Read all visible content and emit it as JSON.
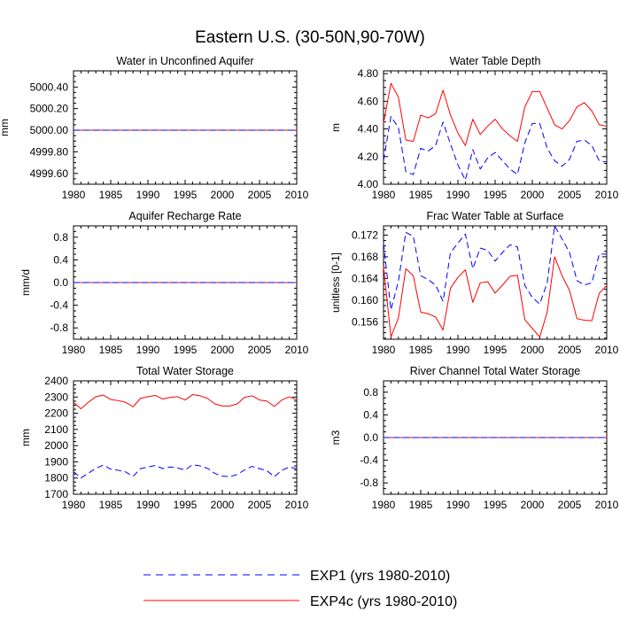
{
  "figure_title": "Eastern U.S. (30-50N,90-70W)",
  "legend": {
    "items": [
      {
        "label": "EXP1 (yrs 1980-2010)",
        "color": "#0000ff",
        "style": "dashed"
      },
      {
        "label": "EXP4c (yrs 1980-2010)",
        "color": "#ff0000",
        "style": "solid"
      }
    ]
  },
  "chart_data": [
    {
      "type": "line",
      "title": "Water in Unconfined Aquifer",
      "ylabel": "mm",
      "xlim": [
        1980,
        2010
      ],
      "ylim": [
        4999.5,
        5000.55
      ],
      "xticks": [
        1980,
        1985,
        1990,
        1995,
        2000,
        2005,
        2010
      ],
      "yticks": [
        4999.6,
        4999.8,
        5000.0,
        5000.2,
        5000.4
      ],
      "yticklabels": [
        "4999.60",
        "4999.80",
        "5000.00",
        "5000.20",
        "5000.40"
      ],
      "series": [
        {
          "name": "EXP1 (yrs 1980-2010)",
          "color": "#0000ff",
          "dash": true,
          "x": [
            1980,
            2010
          ],
          "values": [
            5000.0,
            5000.0
          ]
        },
        {
          "name": "EXP4c (yrs 1980-2010)",
          "color": "#ff0000",
          "dash": false,
          "x": [
            1980,
            2010
          ],
          "values": [
            5000.0,
            5000.0
          ]
        }
      ]
    },
    {
      "type": "line",
      "title": "Water Table Depth",
      "ylabel": "m",
      "xlim": [
        1980,
        2010
      ],
      "ylim": [
        4.0,
        4.82
      ],
      "xticks": [
        1980,
        1985,
        1990,
        1995,
        2000,
        2005,
        2010
      ],
      "yticks": [
        4.0,
        4.2,
        4.4,
        4.6,
        4.8
      ],
      "yticklabels": [
        "4.00",
        "4.20",
        "4.40",
        "4.60",
        "4.80"
      ],
      "series": [
        {
          "name": "EXP1 (yrs 1980-2010)",
          "color": "#0000ff",
          "dash": true,
          "x": [
            1980,
            1981,
            1982,
            1983,
            1984,
            1985,
            1986,
            1987,
            1988,
            1989,
            1990,
            1991,
            1992,
            1993,
            1994,
            1995,
            1996,
            1997,
            1998,
            1999,
            2000,
            2001,
            2002,
            2003,
            2004,
            2005,
            2006,
            2007,
            2008,
            2009,
            2010
          ],
          "values": [
            4.17,
            4.49,
            4.41,
            4.09,
            4.07,
            4.26,
            4.24,
            4.28,
            4.45,
            4.29,
            4.14,
            4.03,
            4.25,
            4.11,
            4.19,
            4.23,
            4.17,
            4.11,
            4.07,
            4.3,
            4.44,
            4.44,
            4.26,
            4.17,
            4.13,
            4.18,
            4.31,
            4.32,
            4.28,
            4.17,
            4.16
          ]
        },
        {
          "name": "EXP4c (yrs 1980-2010)",
          "color": "#ff0000",
          "dash": false,
          "x": [
            1980,
            1981,
            1982,
            1983,
            1984,
            1985,
            1986,
            1987,
            1988,
            1989,
            1990,
            1991,
            1992,
            1993,
            1994,
            1995,
            1996,
            1997,
            1998,
            1999,
            2000,
            2001,
            2002,
            2003,
            2004,
            2005,
            2006,
            2007,
            2008,
            2009,
            2010
          ],
          "values": [
            4.44,
            4.73,
            4.63,
            4.32,
            4.31,
            4.5,
            4.48,
            4.51,
            4.68,
            4.5,
            4.37,
            4.28,
            4.47,
            4.36,
            4.42,
            4.47,
            4.4,
            4.35,
            4.31,
            4.56,
            4.67,
            4.67,
            4.55,
            4.43,
            4.4,
            4.46,
            4.56,
            4.59,
            4.53,
            4.43,
            4.42
          ]
        }
      ]
    },
    {
      "type": "line",
      "title": "Aquifer Recharge Rate",
      "ylabel": "mm/d",
      "xlim": [
        1980,
        2010
      ],
      "ylim": [
        -1.0,
        1.0
      ],
      "xticks": [
        1980,
        1985,
        1990,
        1995,
        2000,
        2005,
        2010
      ],
      "yticks": [
        -0.8,
        -0.4,
        0.0,
        0.4,
        0.8
      ],
      "yticklabels": [
        "-0.8",
        "-0.4",
        "0.0",
        "0.4",
        "0.8"
      ],
      "series": [
        {
          "name": "EXP1 (yrs 1980-2010)",
          "color": "#0000ff",
          "dash": true,
          "x": [
            1980,
            2010
          ],
          "values": [
            0.0,
            0.0
          ]
        },
        {
          "name": "EXP4c (yrs 1980-2010)",
          "color": "#ff0000",
          "dash": false,
          "x": [
            1980,
            2010
          ],
          "values": [
            0.0,
            0.0
          ]
        }
      ]
    },
    {
      "type": "line",
      "title": "Frac Water Table at Surface",
      "ylabel": "unitless [0-1]",
      "xlim": [
        1980,
        2010
      ],
      "ylim": [
        0.1528,
        0.1737
      ],
      "xticks": [
        1980,
        1985,
        1990,
        1995,
        2000,
        2005,
        2010
      ],
      "yticks": [
        0.156,
        0.16,
        0.164,
        0.168,
        0.172
      ],
      "yticklabels": [
        "0.156",
        "0.160",
        "0.164",
        "0.168",
        "0.172"
      ],
      "series": [
        {
          "name": "EXP1 (yrs 1980-2010)",
          "color": "#0000ff",
          "dash": true,
          "x": [
            1980,
            1981,
            1982,
            1983,
            1984,
            1985,
            1986,
            1987,
            1988,
            1989,
            1990,
            1991,
            1992,
            1993,
            1994,
            1995,
            1996,
            1997,
            1998,
            1999,
            2000,
            2001,
            2002,
            2003,
            2004,
            2005,
            2006,
            2007,
            2008,
            2009,
            2010
          ],
          "values": [
            0.1705,
            0.1582,
            0.1635,
            0.1725,
            0.1718,
            0.1645,
            0.1638,
            0.1628,
            0.1598,
            0.1688,
            0.1705,
            0.1722,
            0.1658,
            0.1696,
            0.1692,
            0.1672,
            0.1688,
            0.1702,
            0.1698,
            0.1627,
            0.1605,
            0.1593,
            0.1632,
            0.1737,
            0.1713,
            0.1688,
            0.1636,
            0.1628,
            0.1632,
            0.1685,
            0.1685
          ]
        },
        {
          "name": "EXP4c (yrs 1980-2010)",
          "color": "#ff0000",
          "dash": false,
          "x": [
            1980,
            1981,
            1982,
            1983,
            1984,
            1985,
            1986,
            1987,
            1988,
            1989,
            1990,
            1991,
            1992,
            1993,
            1994,
            1995,
            1996,
            1997,
            1998,
            1999,
            2000,
            2001,
            2002,
            2003,
            2004,
            2005,
            2006,
            2007,
            2008,
            2009,
            2010
          ],
          "values": [
            0.1662,
            0.1532,
            0.1567,
            0.1658,
            0.1645,
            0.1578,
            0.1575,
            0.1569,
            0.1545,
            0.1622,
            0.1642,
            0.1656,
            0.1596,
            0.1632,
            0.1634,
            0.1613,
            0.1628,
            0.1644,
            0.1646,
            0.1564,
            0.1548,
            0.1532,
            0.1578,
            0.168,
            0.1645,
            0.1618,
            0.1566,
            0.1563,
            0.1562,
            0.1613,
            0.1627
          ]
        }
      ]
    },
    {
      "type": "line",
      "title": "Total Water Storage",
      "ylabel": "mm",
      "xlim": [
        1980,
        2010
      ],
      "ylim": [
        1700,
        2400
      ],
      "xticks": [
        1980,
        1985,
        1990,
        1995,
        2000,
        2005,
        2010
      ],
      "yticks": [
        1700,
        1800,
        1900,
        2000,
        2100,
        2200,
        2300,
        2400
      ],
      "yticklabels": [
        "1700",
        "1800",
        "1900",
        "2000",
        "2100",
        "2200",
        "2300",
        "2400"
      ],
      "series": [
        {
          "name": "EXP1 (yrs 1980-2010)",
          "color": "#0000ff",
          "dash": true,
          "x": [
            1980,
            1981,
            1982,
            1983,
            1984,
            1985,
            1986,
            1987,
            1988,
            1989,
            1990,
            1991,
            1992,
            1993,
            1994,
            1995,
            1996,
            1997,
            1998,
            1999,
            2000,
            2001,
            2002,
            2003,
            2004,
            2005,
            2006,
            2007,
            2008,
            2009,
            2010
          ],
          "values": [
            1840,
            1800,
            1830,
            1860,
            1880,
            1855,
            1848,
            1838,
            1810,
            1858,
            1868,
            1878,
            1858,
            1868,
            1862,
            1850,
            1882,
            1875,
            1860,
            1828,
            1812,
            1808,
            1822,
            1850,
            1872,
            1858,
            1845,
            1808,
            1848,
            1868,
            1858
          ]
        },
        {
          "name": "EXP4c (yrs 1980-2010)",
          "color": "#ff0000",
          "dash": false,
          "x": [
            1980,
            1981,
            1982,
            1983,
            1984,
            1985,
            1986,
            1987,
            1988,
            1989,
            1990,
            1991,
            1992,
            1993,
            1994,
            1995,
            1996,
            1997,
            1998,
            1999,
            2000,
            2001,
            2002,
            2003,
            2004,
            2005,
            2006,
            2007,
            2008,
            2009,
            2010
          ],
          "values": [
            2268,
            2228,
            2268,
            2302,
            2312,
            2285,
            2278,
            2268,
            2240,
            2292,
            2302,
            2310,
            2288,
            2298,
            2302,
            2282,
            2315,
            2308,
            2292,
            2258,
            2245,
            2245,
            2258,
            2298,
            2308,
            2282,
            2275,
            2242,
            2282,
            2302,
            2282
          ]
        }
      ]
    },
    {
      "type": "line",
      "title": "River Channel Total Water Storage",
      "ylabel": "m3",
      "xlim": [
        1980,
        2010
      ],
      "ylim": [
        -1.0,
        1.0
      ],
      "xticks": [
        1980,
        1985,
        1990,
        1995,
        2000,
        2005,
        2010
      ],
      "yticks": [
        -0.8,
        -0.4,
        0.0,
        0.4,
        0.8
      ],
      "yticklabels": [
        "-0.8",
        "-0.4",
        "0.0",
        "0.4",
        "0.8"
      ],
      "series": [
        {
          "name": "EXP1 (yrs 1980-2010)",
          "color": "#0000ff",
          "dash": true,
          "x": [
            1980,
            2010
          ],
          "values": [
            0.0,
            0.0
          ]
        },
        {
          "name": "EXP4c (yrs 1980-2010)",
          "color": "#ff0000",
          "dash": false,
          "x": [
            1980,
            2010
          ],
          "values": [
            0.0,
            0.0
          ]
        }
      ]
    }
  ]
}
